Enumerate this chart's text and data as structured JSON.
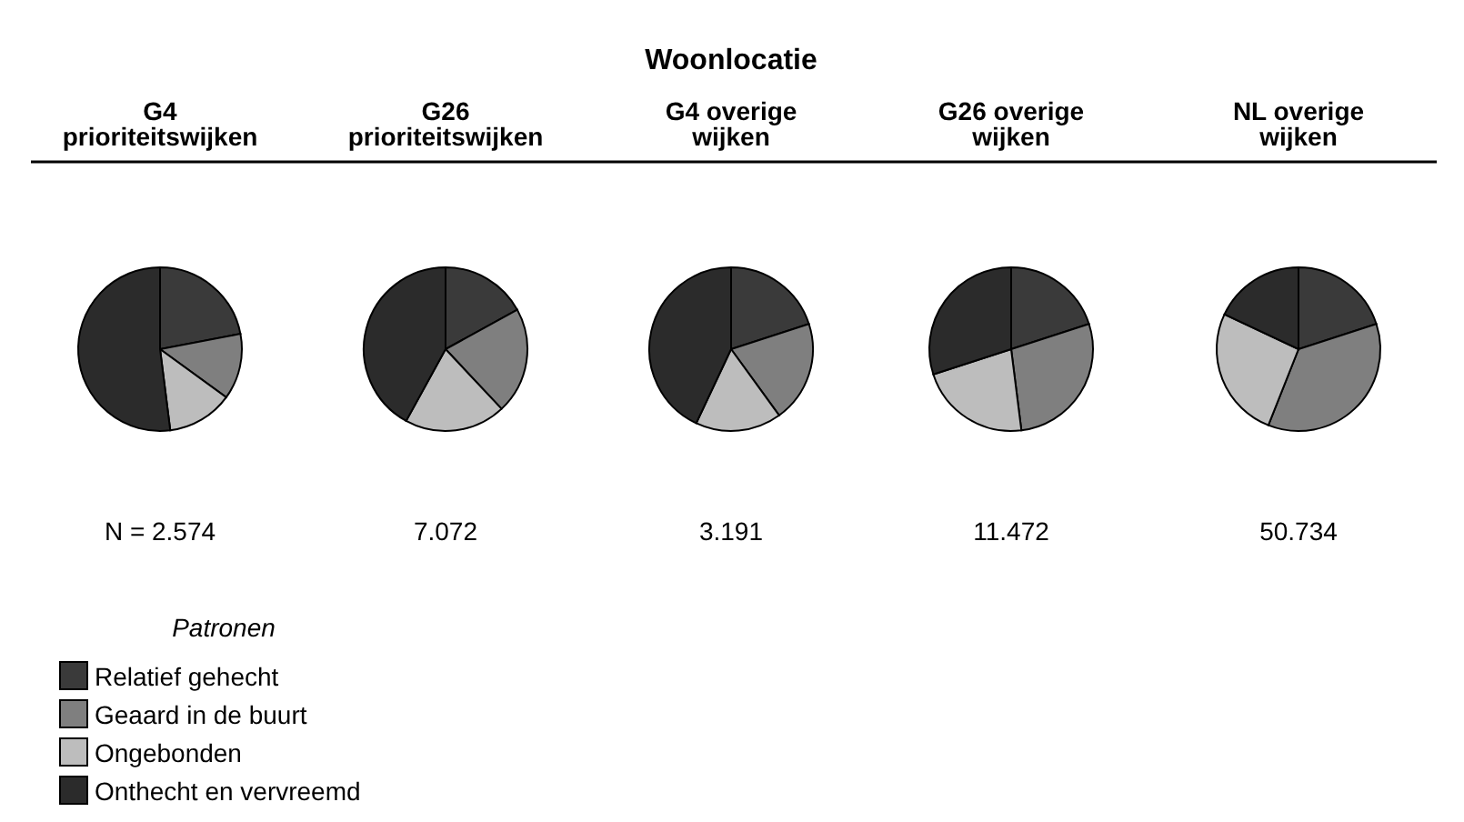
{
  "chart_data": [
    {
      "type": "other",
      "title": "Woonlocatie"
    },
    {
      "type": "pie",
      "title": "G4\nprioriteitswijken",
      "categories": [
        "Relatief gehecht",
        "Geaard in de buurt",
        "Ongebonden",
        "Onthecht en vervreemd"
      ],
      "values": [
        22,
        13,
        13,
        52
      ],
      "colors": [
        "#3a3a3a",
        "#7f7f7f",
        "#bdbdbd",
        "#2b2b2b"
      ],
      "annotations": [
        "N = 2.574"
      ],
      "legend": "bottom",
      "legend_title": "Patronen"
    },
    {
      "type": "pie",
      "title": "G26\nprioriteitswijken",
      "values": [
        17,
        21,
        20,
        42
      ],
      "colors": [
        "#3a3a3a",
        "#7f7f7f",
        "#bdbdbd",
        "#2b2b2b"
      ],
      "annotations": [
        "7.072"
      ]
    },
    {
      "type": "pie",
      "title": "G4 overige\nwijken",
      "values": [
        20,
        20,
        17,
        43
      ],
      "colors": [
        "#3a3a3a",
        "#7f7f7f",
        "#bdbdbd",
        "#2b2b2b"
      ],
      "annotations": [
        "3.191"
      ]
    },
    {
      "type": "pie",
      "title": "G26 overige\nwijken",
      "values": [
        20,
        28,
        22,
        30
      ],
      "colors": [
        "#3a3a3a",
        "#7f7f7f",
        "#bdbdbd",
        "#2b2b2b"
      ],
      "annotations": [
        "11.472"
      ]
    },
    {
      "type": "pie",
      "title": "NL overige\nwijken",
      "values": [
        20,
        36,
        26,
        18
      ],
      "colors": [
        "#3a3a3a",
        "#7f7f7f",
        "#bdbdbd",
        "#2b2b2b"
      ],
      "annotations": [
        "50.734"
      ]
    }
  ]
}
